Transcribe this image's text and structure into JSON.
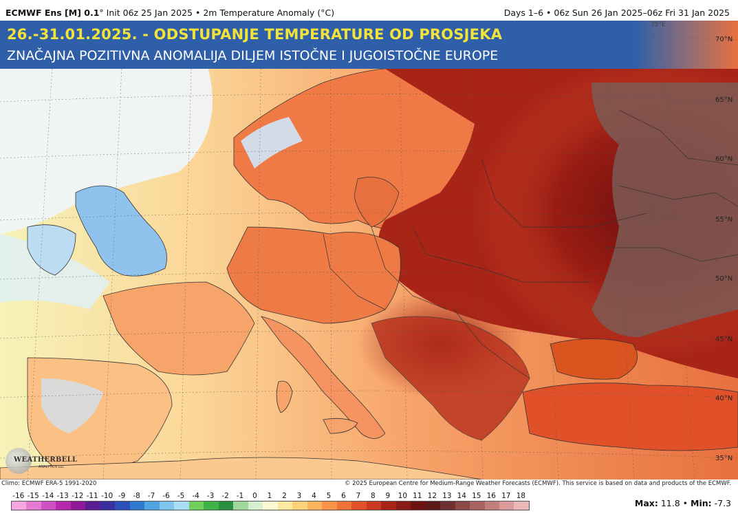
{
  "header": {
    "model": "ECMWF Ens [M] 0.1",
    "degree": "°",
    "init": "Init 06z 25 Jan 2025",
    "variable": "2m Temperature Anomaly (°C)",
    "valid": "Days 1–6 • 06z Sun 26 Jan 2025–06z Fri 31 Jan 2025"
  },
  "banner": {
    "title": "26.-31.01.2025. - ODSTUPANJE TEMPERATURE OD PROSJEKA",
    "subtitle": "ZNAČAJNA POZITIVNA ANOMALIJA DILJEM ISTOČNE I JUGOISTOČNE EUROPE"
  },
  "grid_labels": {
    "lat": [
      "70°N",
      "65°N",
      "60°N",
      "55°N",
      "50°N",
      "45°N",
      "40°N",
      "35°N"
    ],
    "lon": [
      "35°E"
    ]
  },
  "logo": {
    "text": "WEATHERBELL",
    "sub": "ANALYTICS LLC"
  },
  "footer": {
    "climo": "Climo: ECMWF ERA-5 1991-2020",
    "copyright": "© 2025 European Centre for Medium-Range Weather Forecasts (ECMWF). This service is based on data and products of the ECMWF.",
    "max_label": "Max:",
    "max_value": "11.8",
    "min_label": "Min:",
    "min_value": "-7.3",
    "separator": "•"
  },
  "colorbar": {
    "ticks": [
      "-16",
      "-15",
      "-14",
      "-13",
      "-12",
      "-11",
      "-10",
      "-9",
      "-8",
      "-7",
      "-6",
      "-5",
      "-4",
      "-3",
      "-2",
      "-1",
      "0",
      "1",
      "2",
      "3",
      "4",
      "5",
      "6",
      "7",
      "8",
      "9",
      "10",
      "11",
      "12",
      "13",
      "14",
      "15",
      "16",
      "17",
      "18"
    ],
    "colors": [
      "#f4a6e0",
      "#e57ad3",
      "#d14fc4",
      "#b52aac",
      "#8e1a9a",
      "#5a1b93",
      "#3a2fa0",
      "#2b4fb8",
      "#2f78cf",
      "#4fa3e0",
      "#7fc6ee",
      "#a8ddf4",
      "#6fcf5a",
      "#3fb34a",
      "#2a8f3f",
      "#9fd89a",
      "#d6efd0",
      "#fffbd0",
      "#ffe9a0",
      "#ffd27a",
      "#fbb45c",
      "#f7944a",
      "#ef7239",
      "#e0512a",
      "#c9381f",
      "#a82417",
      "#8a1a14",
      "#6e1412",
      "#5a1a1a",
      "#6e3030",
      "#8a4848",
      "#a86262",
      "#c27d7d",
      "#d89a9a",
      "#ebb8b8"
    ]
  },
  "colors": {
    "banner_bg": "#2f5fa8",
    "title_color": "#f2e33a",
    "sea_warm": "#fcc48a",
    "land_hot": "#7a1212",
    "cold_uk": "#8fc3ee"
  }
}
